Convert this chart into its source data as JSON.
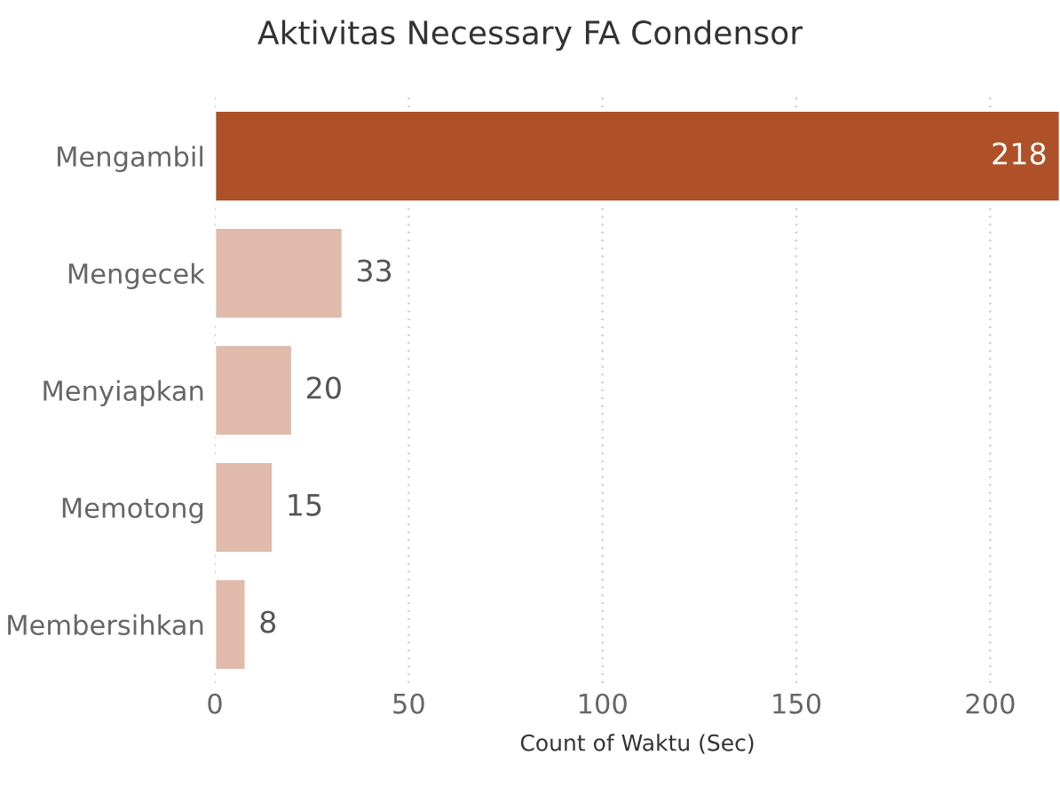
{
  "chart_data": {
    "type": "bar",
    "orientation": "horizontal",
    "title": "Aktivitas Necessary FA Condensor",
    "xlabel": "Count of Waktu (Sec)",
    "categories": [
      "Mengambil",
      "Mengecek",
      "Menyiapkan",
      "Memotong",
      "Membersihkan"
    ],
    "values": [
      218,
      33,
      20,
      15,
      8
    ],
    "colors": [
      "#ae5128",
      "#e0bbab",
      "#e0bbab",
      "#e0bbab",
      "#e0bbab"
    ],
    "xlim": [
      0,
      218
    ],
    "xticks": [
      0,
      50,
      100,
      150,
      200
    ],
    "grid": "x",
    "data_labels": true
  }
}
